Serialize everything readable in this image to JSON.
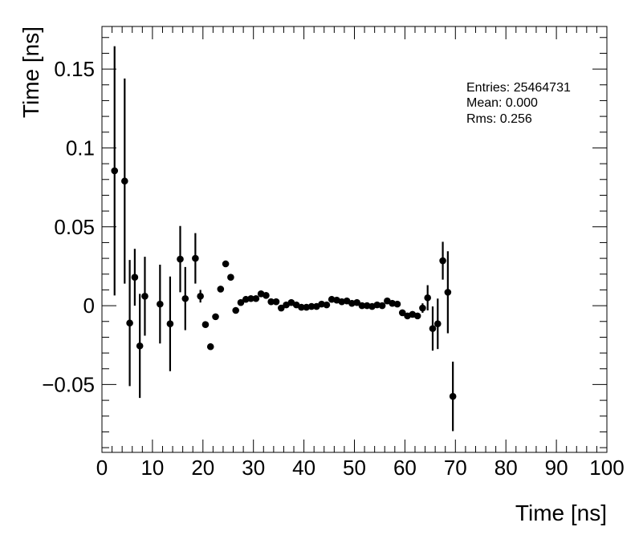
{
  "chart_data": {
    "type": "scatter",
    "xlabel": "Time [ns]",
    "ylabel": "Time [ns]",
    "xlim": [
      0,
      100
    ],
    "ylim": [
      -0.093,
      0.177
    ],
    "grid": false,
    "x_ticks": [
      0,
      10,
      20,
      30,
      40,
      50,
      60,
      70,
      80,
      90,
      100
    ],
    "x_tick_labels": [
      "0",
      "10",
      "20",
      "30",
      "40",
      "50",
      "60",
      "70",
      "80",
      "90",
      "100"
    ],
    "y_ticks": [
      -0.05,
      0,
      0.05,
      0.1,
      0.15
    ],
    "y_tick_labels": [
      "−0.05",
      "0",
      "0.05",
      "0.1",
      "0.15"
    ],
    "stats": {
      "entries": "Entries: 25464731",
      "mean": "Mean: 0.000",
      "rms": "Rms: 0.256"
    },
    "series": [
      {
        "points": [
          {
            "x": 2.5,
            "y": 0.0855,
            "err": 0.079
          },
          {
            "x": 4.5,
            "y": 0.079,
            "err": 0.065
          },
          {
            "x": 5.5,
            "y": -0.011,
            "err": 0.04
          },
          {
            "x": 6.5,
            "y": 0.018,
            "err": 0.018
          },
          {
            "x": 7.5,
            "y": -0.0255,
            "err": 0.033
          },
          {
            "x": 8.5,
            "y": 0.006,
            "err": 0.025
          },
          {
            "x": 11.5,
            "y": 0.001,
            "err": 0.025
          },
          {
            "x": 13.5,
            "y": -0.0115,
            "err": 0.03
          },
          {
            "x": 15.5,
            "y": 0.0295,
            "err": 0.021
          },
          {
            "x": 16.5,
            "y": 0.0045,
            "err": 0.02
          },
          {
            "x": 18.5,
            "y": 0.03,
            "err": 0.016
          },
          {
            "x": 19.5,
            "y": 0.006,
            "err": 0.004
          },
          {
            "x": 20.5,
            "y": -0.012,
            "err": 0.001
          },
          {
            "x": 21.5,
            "y": -0.026,
            "err": 0.001
          },
          {
            "x": 22.5,
            "y": -0.007,
            "err": 0.001
          },
          {
            "x": 23.5,
            "y": 0.0105,
            "err": 0.001
          },
          {
            "x": 24.5,
            "y": 0.0265,
            "err": 0.001
          },
          {
            "x": 25.5,
            "y": 0.018,
            "err": 0.001
          },
          {
            "x": 26.5,
            "y": -0.003,
            "err": 0.001
          },
          {
            "x": 27.5,
            "y": 0.002,
            "err": 0.001
          },
          {
            "x": 28.5,
            "y": 0.004,
            "err": 0.001
          },
          {
            "x": 29.5,
            "y": 0.0045,
            "err": 0.001
          },
          {
            "x": 30.5,
            "y": 0.0045,
            "err": 0.001
          },
          {
            "x": 31.5,
            "y": 0.0075,
            "err": 0.001
          },
          {
            "x": 32.5,
            "y": 0.0065,
            "err": 0.001
          },
          {
            "x": 33.5,
            "y": 0.0025,
            "err": 0.001
          },
          {
            "x": 34.5,
            "y": 0.0025,
            "err": 0.001
          },
          {
            "x": 35.5,
            "y": -0.0015,
            "err": 0.001
          },
          {
            "x": 36.5,
            "y": 0.0005,
            "err": 0.001
          },
          {
            "x": 37.5,
            "y": 0.002,
            "err": 0.001
          },
          {
            "x": 38.5,
            "y": 0.0005,
            "err": 0.001
          },
          {
            "x": 39.5,
            "y": -0.001,
            "err": 0.001
          },
          {
            "x": 40.5,
            "y": -0.001,
            "err": 0.001
          },
          {
            "x": 41.5,
            "y": -0.0005,
            "err": 0.001
          },
          {
            "x": 42.5,
            "y": -0.0005,
            "err": 0.001
          },
          {
            "x": 43.5,
            "y": 0.001,
            "err": 0.001
          },
          {
            "x": 44.5,
            "y": 0.0005,
            "err": 0.001
          },
          {
            "x": 45.5,
            "y": 0.004,
            "err": 0.001
          },
          {
            "x": 46.5,
            "y": 0.0035,
            "err": 0.001
          },
          {
            "x": 47.5,
            "y": 0.0025,
            "err": 0.001
          },
          {
            "x": 48.5,
            "y": 0.003,
            "err": 0.001
          },
          {
            "x": 49.5,
            "y": 0.0015,
            "err": 0.001
          },
          {
            "x": 50.5,
            "y": 0.002,
            "err": 0.001
          },
          {
            "x": 51.5,
            "y": 0.0,
            "err": 0.001
          },
          {
            "x": 52.5,
            "y": 0.0,
            "err": 0.001
          },
          {
            "x": 53.5,
            "y": -0.0005,
            "err": 0.001
          },
          {
            "x": 54.5,
            "y": 0.0005,
            "err": 0.001
          },
          {
            "x": 55.5,
            "y": 0.0,
            "err": 0.001
          },
          {
            "x": 56.5,
            "y": 0.003,
            "err": 0.001
          },
          {
            "x": 57.5,
            "y": 0.0015,
            "err": 0.001
          },
          {
            "x": 58.5,
            "y": 0.001,
            "err": 0.001
          },
          {
            "x": 59.5,
            "y": -0.0045,
            "err": 0.001
          },
          {
            "x": 60.5,
            "y": -0.0065,
            "err": 0.001
          },
          {
            "x": 61.5,
            "y": -0.0055,
            "err": 0.001
          },
          {
            "x": 62.5,
            "y": -0.0065,
            "err": 0.001
          },
          {
            "x": 63.5,
            "y": -0.0015,
            "err": 0.003
          },
          {
            "x": 64.5,
            "y": 0.005,
            "err": 0.008
          },
          {
            "x": 65.5,
            "y": -0.0145,
            "err": 0.014
          },
          {
            "x": 66.5,
            "y": -0.0115,
            "err": 0.016
          },
          {
            "x": 67.5,
            "y": 0.0285,
            "err": 0.012
          },
          {
            "x": 68.5,
            "y": 0.0085,
            "err": 0.026
          },
          {
            "x": 69.5,
            "y": -0.0575,
            "err": 0.022
          }
        ]
      }
    ]
  }
}
